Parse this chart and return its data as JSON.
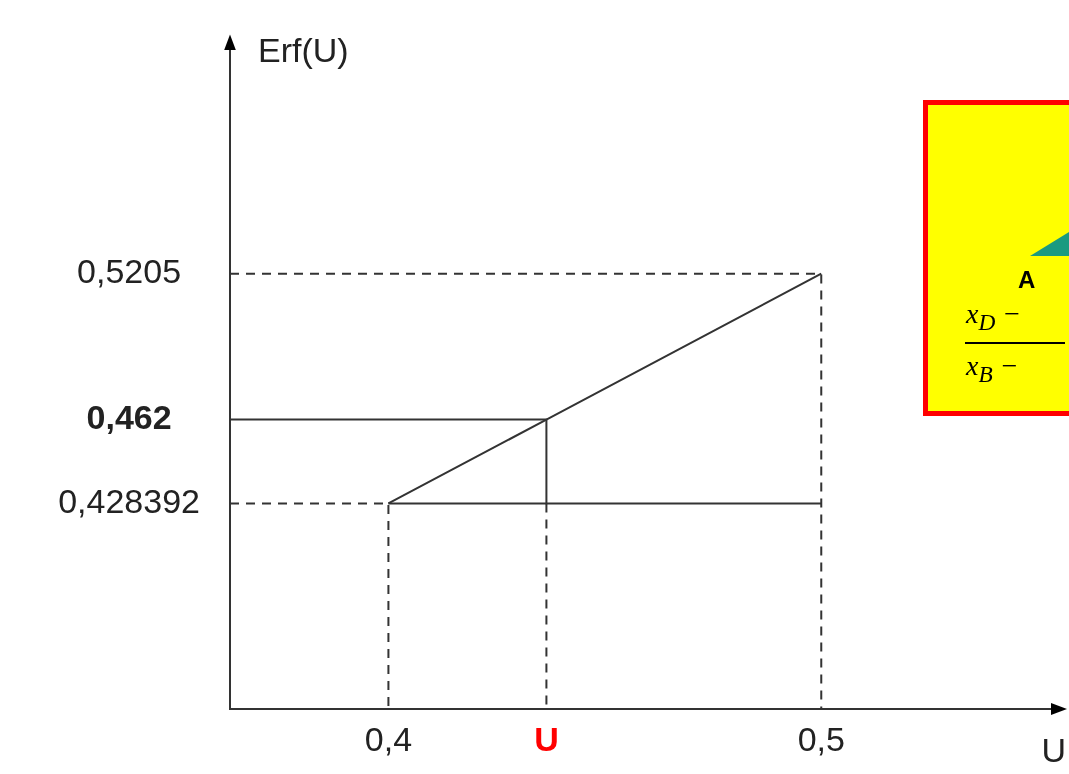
{
  "chart_data": {
    "type": "line",
    "ylabel": "Erf(U)",
    "xlabel": "U",
    "xlim": [
      0.3634,
      0.554
    ],
    "ylim": [
      0.346,
      0.61
    ],
    "xticks": [
      {
        "value": 0.4,
        "label": "0,4"
      },
      {
        "value": 0.4365,
        "label": "U"
      },
      {
        "value": 0.5,
        "label": "0,5"
      }
    ],
    "yticks": [
      {
        "value": 0.428392,
        "label": "0,428392"
      },
      {
        "value": 0.462,
        "label": "0,462"
      },
      {
        "value": 0.5205,
        "label": "0,5205"
      }
    ],
    "grid": false,
    "legend": false,
    "marker": "none",
    "series": [
      {
        "color": "#333333",
        "line_style": "solid",
        "x": [
          0.4,
          0.4365,
          0.5
        ],
        "values": [
          0.428392,
          0.462,
          0.5205
        ]
      },
      {
        "color": "#333333",
        "line_style": "dashed",
        "x": [
          0.3634,
          0.5,
          0.5
        ],
        "values": [
          0.5205,
          0.5205,
          0.346
        ]
      },
      {
        "color": "#333333",
        "line_style": "dashed",
        "x": [
          0.3634,
          0.4,
          0.4
        ],
        "values": [
          0.428392,
          0.428392,
          0.346
        ]
      },
      {
        "color": "#333333",
        "line_style": "solid",
        "x": [
          0.4,
          0.5
        ],
        "values": [
          0.428392,
          0.428392
        ]
      },
      {
        "color": "#333333",
        "line_style": "solid",
        "x": [
          0.3634,
          0.4365,
          0.4365
        ],
        "values": [
          0.462,
          0.462,
          0.428392
        ]
      },
      {
        "color": "#333333",
        "line_style": "dashed",
        "x": [
          0.4365,
          0.4365
        ],
        "values": [
          0.428392,
          0.346
        ]
      }
    ],
    "annotations": [
      "A",
      "x$_{D}$ −",
      "x$_{B}$ −"
    ]
  }
}
